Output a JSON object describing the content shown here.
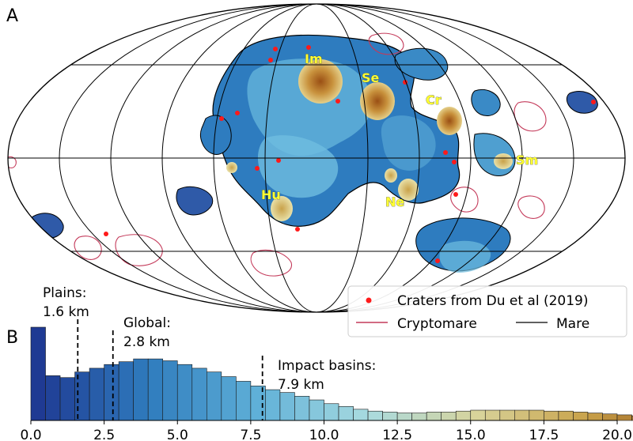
{
  "panels": {
    "a": "A",
    "b": "B"
  },
  "map": {
    "basin_labels": [
      "Im",
      "Se",
      "Cr",
      "Sm",
      "Hu",
      "Ne"
    ],
    "legend": {
      "craters": "Craters from Du et al (2019)",
      "cryptomare": "Cryptomare",
      "mare": "Mare"
    },
    "colors": {
      "crater_marker": "#ff1a1a",
      "cryptomare_outline": "#c43a5a",
      "mare_outline": "#000000",
      "label_text": "#ffff33",
      "grid": "#000000"
    }
  },
  "chart_data": {
    "type": "bar",
    "xlim": [
      0,
      20
    ],
    "xticks": [
      0.0,
      2.5,
      5.0,
      7.5,
      10.0,
      12.5,
      15.0,
      17.5,
      20.0
    ],
    "xtick_labels": [
      "0.0",
      "2.5",
      "5.0",
      "7.5",
      "10.0",
      "12.5",
      "15.0",
      "17.5",
      "20.0"
    ],
    "bin_width": 0.5,
    "bin_start": 0.0,
    "ylim": [
      0,
      1.0
    ],
    "values": [
      1.0,
      0.48,
      0.46,
      0.52,
      0.56,
      0.6,
      0.63,
      0.66,
      0.66,
      0.64,
      0.6,
      0.56,
      0.52,
      0.47,
      0.42,
      0.37,
      0.33,
      0.3,
      0.26,
      0.22,
      0.18,
      0.15,
      0.12,
      0.1,
      0.09,
      0.08,
      0.08,
      0.09,
      0.09,
      0.1,
      0.11,
      0.11,
      0.11,
      0.11,
      0.11,
      0.1,
      0.1,
      0.09,
      0.08,
      0.07,
      0.06,
      0.05,
      0.04,
      0.03,
      0.02,
      0.01
    ],
    "colormap_stops": [
      "#1f3a93",
      "#2f7bbd",
      "#5fb0d8",
      "#a9dbe0",
      "#d8d39a",
      "#c9a24a",
      "#8a4a14"
    ],
    "annotations": [
      {
        "line1": "Plains:",
        "line2": "1.6 km",
        "x": 1.6
      },
      {
        "line1": "Global:",
        "line2": "2.8 km",
        "x": 2.8
      },
      {
        "line1": "Impact basins:",
        "line2": "7.9 km",
        "x": 7.9
      }
    ]
  }
}
